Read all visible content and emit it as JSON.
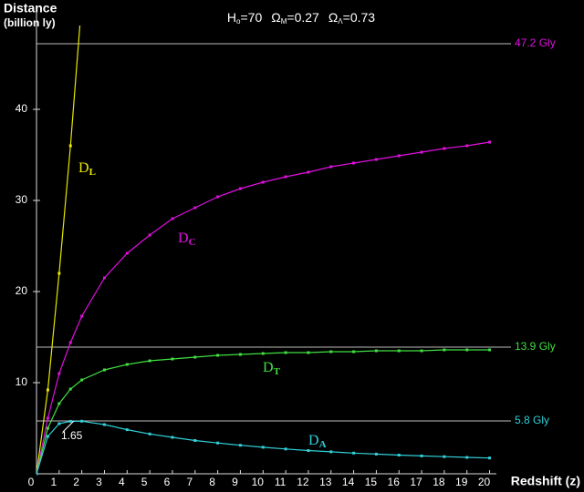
{
  "chart_data": {
    "type": "line",
    "title_parts": [
      [
        "H",
        "o",
        "=70"
      ],
      [
        "Ω",
        "M",
        "=0.27"
      ],
      [
        "Ω",
        "Λ",
        "=0.73"
      ]
    ],
    "y_label": [
      "Distance",
      "(billion ly)"
    ],
    "x_label": "Redshift (z)",
    "x": [
      0,
      0.5,
      1,
      1.5,
      2,
      3,
      4,
      5,
      6,
      7,
      8,
      9,
      10,
      11,
      12,
      13,
      14,
      15,
      16,
      17,
      18,
      19,
      20
    ],
    "series": [
      {
        "name": "D",
        "subscript": "L",
        "color": "#e8e800",
        "values": [
          0,
          9.2,
          22.0,
          36.0,
          51.9,
          null,
          null,
          null,
          null,
          null,
          null,
          null,
          null,
          null,
          null,
          null,
          null,
          null,
          null,
          null,
          null,
          null,
          null
        ]
      },
      {
        "name": "D",
        "subscript": "C",
        "color": "#e010e0",
        "values": [
          0,
          6.1,
          11.0,
          14.4,
          17.3,
          21.5,
          24.2,
          26.2,
          28.0,
          29.2,
          30.4,
          31.3,
          32.0,
          32.6,
          33.1,
          33.7,
          34.1,
          34.5,
          34.9,
          35.3,
          35.7,
          36.0,
          36.4
        ]
      },
      {
        "name": "D",
        "subscript": "T",
        "color": "#40e040",
        "values": [
          0,
          5.0,
          7.7,
          9.3,
          10.3,
          11.4,
          12.0,
          12.4,
          12.6,
          12.8,
          13.0,
          13.1,
          13.2,
          13.3,
          13.3,
          13.4,
          13.4,
          13.5,
          13.5,
          13.5,
          13.6,
          13.6,
          13.6
        ]
      },
      {
        "name": "D",
        "subscript": "A",
        "color": "#30d0d8",
        "values": [
          0,
          4.1,
          5.5,
          5.76,
          5.77,
          5.4,
          4.84,
          4.37,
          4.0,
          3.65,
          3.38,
          3.13,
          2.91,
          2.72,
          2.55,
          2.41,
          2.27,
          2.16,
          2.05,
          1.96,
          1.88,
          1.8,
          1.73
        ]
      }
    ],
    "reference_lines": [
      {
        "value": 47.2,
        "label": "47.2 Gly",
        "color": "#e010e0"
      },
      {
        "value": 13.9,
        "label": "13.9 Gly",
        "color": "#40e040"
      },
      {
        "value": 5.8,
        "label": "5.8 Gly",
        "color": "#30d0d8"
      }
    ],
    "peak_annotation": {
      "x": 1.65,
      "label": "1.65"
    },
    "xlim": [
      0,
      20.3
    ],
    "ylim": [
      0,
      49.2
    ],
    "xticks": [
      0,
      1,
      2,
      3,
      4,
      5,
      6,
      7,
      8,
      9,
      10,
      11,
      12,
      13,
      14,
      15,
      16,
      17,
      18,
      19,
      20
    ],
    "yticks": [
      10,
      20,
      30,
      40
    ]
  }
}
